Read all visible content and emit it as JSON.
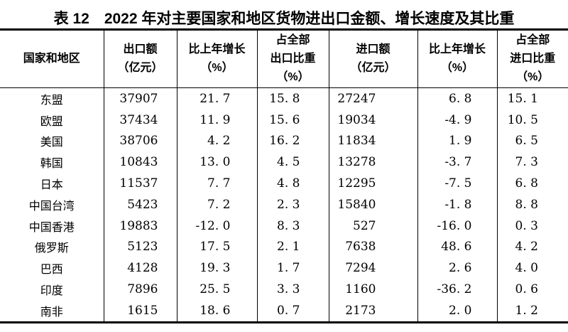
{
  "title": "表 12　2022 年对主要国家和地区货物进出口金额、增长速度及其比重",
  "colors": {
    "text": "#000000",
    "background": "#ffffff",
    "border": "#000000"
  },
  "table": {
    "headers": [
      "国家和地区",
      "出口额\n（亿元）",
      "比上年增长\n（%）",
      "占全部\n出口比重\n（%）",
      "进口额\n（亿元）",
      "比上年增长\n（%）",
      "占全部\n进口比重\n（%）"
    ],
    "rows": [
      {
        "region": "东盟",
        "export_value": "37907",
        "export_growth": "21. 7",
        "export_share": "15. 8",
        "import_value": "27247",
        "import_growth": "6. 8",
        "import_share": "15. 1"
      },
      {
        "region": "欧盟",
        "export_value": "37434",
        "export_growth": "11. 9",
        "export_share": "15. 6",
        "import_value": "19034",
        "import_growth": "-4. 9",
        "import_share": "10. 5"
      },
      {
        "region": "美国",
        "export_value": "38706",
        "export_growth": "4. 2",
        "export_share": "16. 2",
        "import_value": "11834",
        "import_growth": "1. 9",
        "import_share": "6. 5"
      },
      {
        "region": "韩国",
        "export_value": "10843",
        "export_growth": "13. 0",
        "export_share": "4. 5",
        "import_value": "13278",
        "import_growth": "-3. 7",
        "import_share": "7. 3"
      },
      {
        "region": "日本",
        "export_value": "11537",
        "export_growth": "7. 7",
        "export_share": "4. 8",
        "import_value": "12295",
        "import_growth": "-7. 5",
        "import_share": "6. 8"
      },
      {
        "region": "中国台湾",
        "export_value": "5423",
        "export_growth": "7. 2",
        "export_share": "2. 3",
        "import_value": "15840",
        "import_growth": "-1. 8",
        "import_share": "8. 8"
      },
      {
        "region": "中国香港",
        "export_value": "19883",
        "export_growth": "-12. 0",
        "export_share": "8. 3",
        "import_value": "527",
        "import_growth": "-16. 0",
        "import_share": "0. 3"
      },
      {
        "region": "俄罗斯",
        "export_value": "5123",
        "export_growth": "17. 5",
        "export_share": "2. 1",
        "import_value": "7638",
        "import_growth": "48. 6",
        "import_share": "4. 2"
      },
      {
        "region": "巴西",
        "export_value": "4128",
        "export_growth": "19. 3",
        "export_share": "1. 7",
        "import_value": "7294",
        "import_growth": "2. 6",
        "import_share": "4. 0"
      },
      {
        "region": "印度",
        "export_value": "7896",
        "export_growth": "25. 5",
        "export_share": "3. 3",
        "import_value": "1160",
        "import_growth": "-36. 2",
        "import_share": "0. 6"
      },
      {
        "region": "南非",
        "export_value": "1615",
        "export_growth": "18. 6",
        "export_share": "0. 7",
        "import_value": "2173",
        "import_growth": "2. 0",
        "import_share": "1. 2"
      }
    ]
  },
  "chart_data": {
    "type": "table",
    "title": "表 12　2022 年对主要国家和地区货物进出口金额、增长速度及其比重",
    "columns": [
      "国家和地区",
      "出口额（亿元）",
      "比上年增长（%）",
      "占全部出口比重（%）",
      "进口额（亿元）",
      "比上年增长（%）",
      "占全部进口比重（%）"
    ],
    "rows": [
      [
        "东盟",
        37907,
        21.7,
        15.8,
        27247,
        6.8,
        15.1
      ],
      [
        "欧盟",
        37434,
        11.9,
        15.6,
        19034,
        -4.9,
        10.5
      ],
      [
        "美国",
        38706,
        4.2,
        16.2,
        11834,
        1.9,
        6.5
      ],
      [
        "韩国",
        10843,
        13.0,
        4.5,
        13278,
        -3.7,
        7.3
      ],
      [
        "日本",
        11537,
        7.7,
        4.8,
        12295,
        -7.5,
        6.8
      ],
      [
        "中国台湾",
        5423,
        7.2,
        2.3,
        15840,
        -1.8,
        8.8
      ],
      [
        "中国香港",
        19883,
        -12.0,
        8.3,
        527,
        -16.0,
        0.3
      ],
      [
        "俄罗斯",
        5123,
        17.5,
        2.1,
        7638,
        48.6,
        4.2
      ],
      [
        "巴西",
        4128,
        19.3,
        1.7,
        7294,
        2.6,
        4.0
      ],
      [
        "印度",
        7896,
        25.5,
        3.3,
        1160,
        -36.2,
        0.6
      ],
      [
        "南非",
        1615,
        18.6,
        0.7,
        2173,
        2.0,
        1.2
      ]
    ]
  }
}
